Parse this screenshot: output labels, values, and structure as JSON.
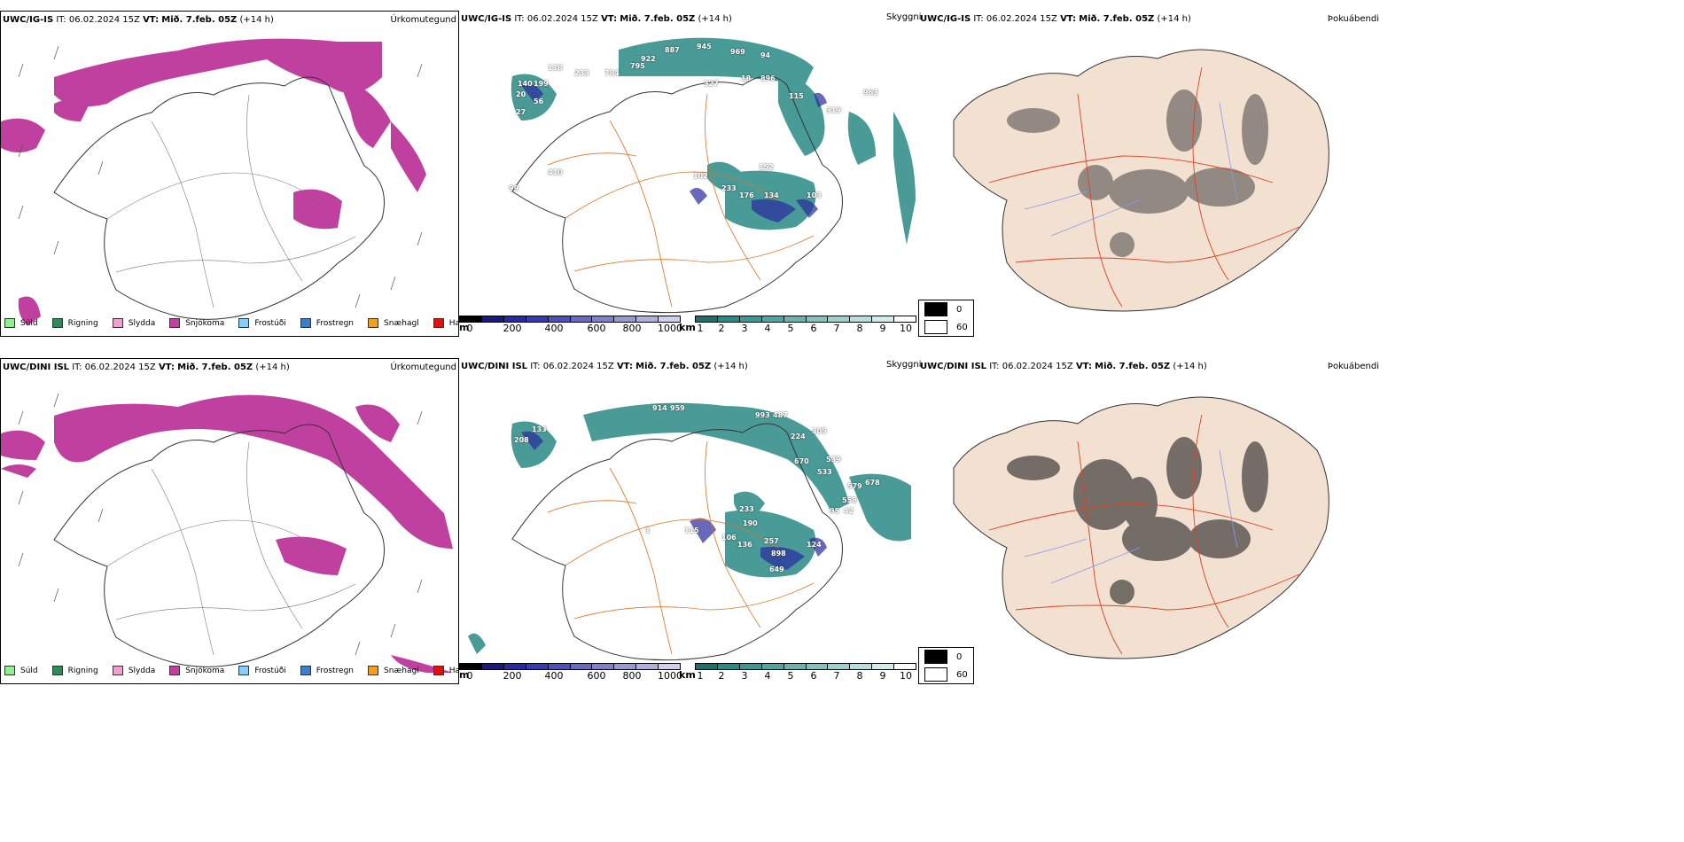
{
  "rows": [
    {
      "model": "UWC/IG-IS",
      "it": "06.02.2024 15Z",
      "vt": "Mið. 7.feb. 05Z",
      "lead": "(+14 h)",
      "labels": [
        "887",
        "945",
        "969",
        "94",
        "922",
        "795",
        "784",
        "118",
        "233",
        "199",
        "140",
        "20",
        "56",
        "27",
        "327",
        "18",
        "896",
        "115",
        "319",
        "963",
        "410",
        "102",
        "233",
        "176",
        "134",
        "103",
        "152",
        "99"
      ]
    },
    {
      "model": "UWC/DINI ISL",
      "it": "06.02.2024 15Z",
      "vt": "Mið. 7.feb. 05Z",
      "lead": "(+14 h)",
      "labels": [
        "914",
        "959",
        "993",
        "487",
        "224",
        "305",
        "670",
        "533",
        "539",
        "678",
        "579",
        "558",
        "42",
        "95",
        "124",
        "133",
        "208",
        "233",
        "190",
        "115",
        "106",
        "136",
        "257",
        "898",
        "649",
        "1"
      ]
    }
  ],
  "text": {
    "it_prefix": "IT:",
    "vt_prefix": "VT:"
  },
  "panel_titles": {
    "precip": "Úrkomutegund",
    "cloud": "Skyggni",
    "fog": "Þokuábendi"
  },
  "precip_legend": [
    {
      "label": "Súld",
      "color": "#90ee90"
    },
    {
      "label": "Rigning",
      "color": "#2e8b57"
    },
    {
      "label": "Slydda",
      "color": "#f0a0d0"
    },
    {
      "label": "Snjókoma",
      "color": "#c040a0"
    },
    {
      "label": "Frostúði",
      "color": "#87cefa"
    },
    {
      "label": "Frostregn",
      "color": "#3a7fc8"
    },
    {
      "label": "Snæhagl",
      "color": "#f0a020"
    },
    {
      "label": "Haglél",
      "color": "#e01010"
    }
  ],
  "colorbar_m": {
    "unit": "m",
    "ticks": [
      "0",
      "200",
      "400",
      "600",
      "800",
      "1000"
    ]
  },
  "colorbar_km": {
    "unit": "km",
    "ticks": [
      "1",
      "2",
      "3",
      "4",
      "5",
      "6",
      "7",
      "8",
      "9",
      "10"
    ]
  },
  "fog_legend": [
    "0",
    "60"
  ],
  "colors": {
    "snow": "#c040a0",
    "teal": "#2a8a85",
    "navy": "#2a2aa0",
    "road": "#e07020",
    "land": "#f2e0d0"
  }
}
